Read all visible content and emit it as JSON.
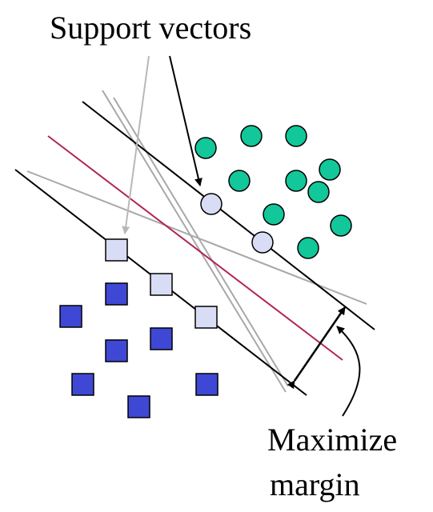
{
  "labels": {
    "support_vectors": "Support vectors",
    "maximize": "Maximize",
    "margin": "margin"
  },
  "colors": {
    "circle_fill": "#12c79a",
    "support_circle_fill": "#d9dcf5",
    "square_fill": "#3f48d4",
    "support_square_fill": "#d9dcf5",
    "optimal_hyperplane": "#b0245a",
    "alternative_separator": "#a8a8a8",
    "margin_boundary": "#000000"
  },
  "legend": {
    "circle_class_icon": "filled-circle",
    "square_class_icon": "filled-square"
  }
}
